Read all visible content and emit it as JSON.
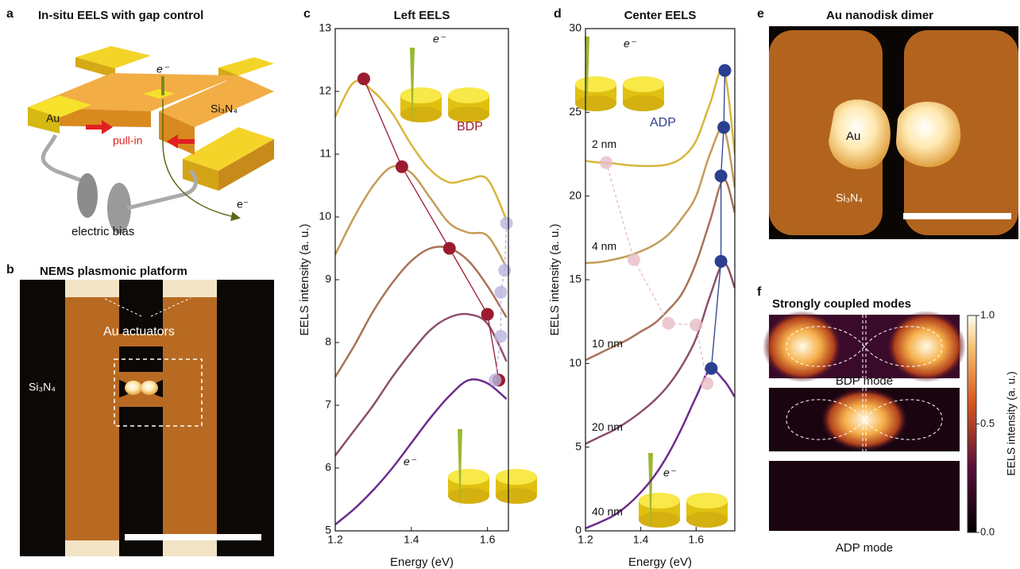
{
  "panel_letters": [
    "a",
    "b",
    "c",
    "d",
    "e",
    "f"
  ],
  "panels": {
    "a": {
      "title": "In-situ EELS with gap control",
      "labels": [
        "Au",
        "Si₃N₄",
        "e⁻",
        "pull-in",
        "electric bias",
        "e⁻"
      ]
    },
    "b": {
      "title": "NEMS plasmonic platform",
      "labels": [
        "Au actuators",
        "Si₃N₄"
      ]
    },
    "e": {
      "title": "Au nanodisk dimer",
      "labels": [
        "Au",
        "Si₃N₄"
      ]
    },
    "f": {
      "title": "Strongly coupled modes",
      "labels": [
        "BDP mode",
        "ADP mode"
      ],
      "colorbar_label": "EELS intensity (a. u.)",
      "colorbar_ticks": [
        {
          "value": 1,
          "label": "1.0"
        },
        {
          "value": 0.5,
          "label": "0.5"
        },
        {
          "value": 0,
          "label": "0.0"
        }
      ],
      "colorbar_lim": [
        0,
        1
      ]
    }
  },
  "chart_data": [
    {
      "type": "line",
      "title": "Left EELS",
      "x_label": "Energy (eV)",
      "y_label": "EELS intensity (a. u.)",
      "annotations": [
        "BDP",
        "e⁻",
        "e⁻"
      ],
      "x": [
        1.2,
        1.25,
        1.3,
        1.35,
        1.4,
        1.45,
        1.5,
        1.55,
        1.6,
        1.65
      ],
      "xlim": [
        1.2,
        1.655
      ],
      "xticks": [
        1.2,
        1.4,
        1.6
      ],
      "ylim": [
        5,
        13
      ],
      "yticks": [
        5,
        6,
        7,
        8,
        9,
        10,
        11,
        12,
        13
      ],
      "series": [
        {
          "color": "#d8b63c",
          "values": [
            11.6,
            12.15,
            12.0,
            11.65,
            11.15,
            10.75,
            10.55,
            10.6,
            10.6,
            9.95
          ]
        },
        {
          "color": "#c49c56",
          "values": [
            9.4,
            10.0,
            10.5,
            10.8,
            10.7,
            10.3,
            9.9,
            9.75,
            9.7,
            9.2
          ]
        },
        {
          "color": "#a97258",
          "values": [
            7.45,
            7.95,
            8.5,
            8.95,
            9.3,
            9.5,
            9.5,
            9.3,
            8.9,
            8.4
          ]
        },
        {
          "color": "#8c4f70",
          "values": [
            6.2,
            6.6,
            7.0,
            7.45,
            7.85,
            8.2,
            8.4,
            8.45,
            8.3,
            7.7
          ]
        },
        {
          "color": "#6c2c8c",
          "values": [
            5.1,
            5.35,
            5.65,
            6.0,
            6.4,
            6.8,
            7.15,
            7.4,
            7.35,
            7.1
          ]
        },
        {
          "color": "#9b1b30",
          "marker": true,
          "line_style": "solid",
          "x": [
            1.275,
            1.375,
            1.5,
            1.6,
            1.63
          ],
          "values": [
            12.2,
            10.8,
            9.5,
            8.45,
            7.4
          ]
        },
        {
          "color": "#b8b4dc",
          "marker": true,
          "line_style": "dashed",
          "x": [
            1.65,
            1.645,
            1.635,
            1.635,
            1.62
          ],
          "values": [
            9.9,
            9.15,
            8.8,
            8.1,
            7.4
          ]
        }
      ]
    },
    {
      "type": "line",
      "title": "Center EELS",
      "x_label": "Energy (eV)",
      "y_label": "EELS intensity (a. u.)",
      "annotations": [
        "ADP",
        "e⁻",
        "e⁻"
      ],
      "x": [
        1.2,
        1.25,
        1.3,
        1.35,
        1.4,
        1.45,
        1.5,
        1.55,
        1.6,
        1.65,
        1.7,
        1.74
      ],
      "xlim": [
        1.2,
        1.74
      ],
      "xticks": [
        1.2,
        1.4,
        1.6
      ],
      "ylim": [
        0,
        30
      ],
      "yticks": [
        0,
        5,
        10,
        15,
        20,
        25,
        30
      ],
      "series": [
        {
          "name": "2 nm",
          "color": "#d8b63c",
          "values": [
            22.1,
            22.0,
            21.95,
            21.85,
            21.8,
            21.8,
            21.9,
            22.3,
            23.3,
            25.5,
            27.5,
            22.5
          ]
        },
        {
          "name": "4 nm",
          "color": "#c49c56",
          "values": [
            16.0,
            16.05,
            16.2,
            16.4,
            16.7,
            17.1,
            17.7,
            18.7,
            20.0,
            22.5,
            24.0,
            20.5
          ]
        },
        {
          "name": "10 nm",
          "color": "#a97258",
          "values": [
            10.2,
            10.6,
            11.0,
            11.4,
            11.9,
            12.4,
            13.2,
            14.2,
            16.0,
            18.5,
            21.0,
            19.0
          ]
        },
        {
          "name": "20 nm",
          "color": "#8c4f70",
          "values": [
            5.2,
            5.6,
            6.0,
            6.5,
            7.1,
            7.8,
            8.7,
            9.9,
            11.5,
            14.0,
            16.0,
            14.5
          ]
        },
        {
          "name": "40 nm",
          "color": "#6c2c8c",
          "values": [
            0.15,
            0.5,
            0.9,
            1.5,
            2.3,
            3.3,
            4.6,
            6.2,
            8.0,
            9.6,
            9.0,
            8.0
          ]
        },
        {
          "color": "#2b3f8f",
          "marker": true,
          "line_style": "solid",
          "x": [
            1.704,
            1.7,
            1.69,
            1.69,
            1.655
          ],
          "values": [
            27.5,
            24.1,
            21.2,
            16.1,
            9.7
          ]
        },
        {
          "color": "#e8bcc4",
          "marker": true,
          "line_style": "dashed",
          "x": [
            1.275,
            1.375,
            1.5,
            1.6,
            1.64
          ],
          "values": [
            22.0,
            16.2,
            12.4,
            12.3,
            8.8
          ]
        }
      ]
    }
  ]
}
